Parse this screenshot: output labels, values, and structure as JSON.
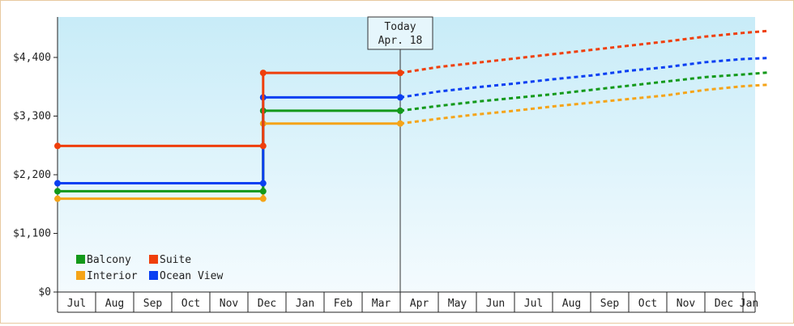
{
  "chart_data": {
    "type": "line",
    "title": "",
    "xlabel": "",
    "ylabel": "",
    "ylim": [
      0,
      4400
    ],
    "y_ticks": [
      {
        "value": 0,
        "label": "$0"
      },
      {
        "value": 1100,
        "label": "$1,100"
      },
      {
        "value": 2200,
        "label": "$2,200"
      },
      {
        "value": 3300,
        "label": "$3,300"
      },
      {
        "value": 4400,
        "label": "$4,400"
      }
    ],
    "months": [
      "Jul",
      "Aug",
      "Sep",
      "Oct",
      "Nov",
      "Dec",
      "Jan",
      "Feb",
      "Mar",
      "Apr",
      "May",
      "Jun",
      "Jul",
      "Aug",
      "Sep",
      "Oct",
      "Nov",
      "Dec",
      "Jan"
    ],
    "x_start": "Jul",
    "today": {
      "label_line1": "Today",
      "label_line2": "Apr. 18",
      "month_index": 9.0
    },
    "grid": false,
    "legend_position": "bottom-left",
    "series": [
      {
        "name": "Balcony",
        "color": "#13991a",
        "actual": [
          [
            0,
            1890
          ],
          [
            5.4,
            1890
          ],
          [
            5.4,
            3400
          ],
          [
            9.0,
            3400
          ]
        ],
        "forecast": [
          [
            9.0,
            3400
          ],
          [
            10,
            3490
          ],
          [
            11,
            3570
          ],
          [
            12,
            3640
          ],
          [
            13,
            3710
          ],
          [
            14,
            3790
          ],
          [
            15,
            3870
          ],
          [
            16,
            3950
          ],
          [
            17,
            4030
          ],
          [
            18,
            4080
          ],
          [
            18.7,
            4120
          ]
        ]
      },
      {
        "name": "Suite",
        "color": "#ef3f0b",
        "actual": [
          [
            0,
            2740
          ],
          [
            5.4,
            2740
          ],
          [
            5.4,
            4110
          ],
          [
            9.0,
            4110
          ]
        ],
        "forecast": [
          [
            9.0,
            4110
          ],
          [
            10,
            4220
          ],
          [
            11,
            4300
          ],
          [
            12,
            4380
          ],
          [
            13,
            4460
          ],
          [
            14,
            4540
          ],
          [
            15,
            4620
          ],
          [
            16,
            4700
          ],
          [
            17,
            4790
          ],
          [
            18,
            4860
          ],
          [
            18.7,
            4900
          ]
        ]
      },
      {
        "name": "Interior",
        "color": "#f5a418",
        "actual": [
          [
            0,
            1750
          ],
          [
            5.4,
            1750
          ],
          [
            5.4,
            3160
          ],
          [
            9.0,
            3160
          ]
        ],
        "forecast": [
          [
            9.0,
            3160
          ],
          [
            10,
            3250
          ],
          [
            11,
            3330
          ],
          [
            12,
            3400
          ],
          [
            13,
            3480
          ],
          [
            14,
            3550
          ],
          [
            15,
            3620
          ],
          [
            16,
            3690
          ],
          [
            17,
            3790
          ],
          [
            18,
            3860
          ],
          [
            18.7,
            3890
          ]
        ]
      },
      {
        "name": "Ocean View",
        "color": "#0a3ff2",
        "actual": [
          [
            0,
            2040
          ],
          [
            5.4,
            2040
          ],
          [
            5.4,
            3650
          ],
          [
            9.0,
            3650
          ]
        ],
        "forecast": [
          [
            9.0,
            3650
          ],
          [
            10,
            3760
          ],
          [
            11,
            3840
          ],
          [
            12,
            3910
          ],
          [
            13,
            3990
          ],
          [
            14,
            4060
          ],
          [
            15,
            4150
          ],
          [
            16,
            4220
          ],
          [
            17,
            4310
          ],
          [
            18,
            4370
          ],
          [
            18.7,
            4390
          ]
        ]
      }
    ],
    "legend": [
      {
        "name": "Balcony",
        "color": "#13991a"
      },
      {
        "name": "Suite",
        "color": "#ef3f0b"
      },
      {
        "name": "Interior",
        "color": "#f5a418"
      },
      {
        "name": "Ocean View",
        "color": "#0a3ff2"
      }
    ]
  }
}
